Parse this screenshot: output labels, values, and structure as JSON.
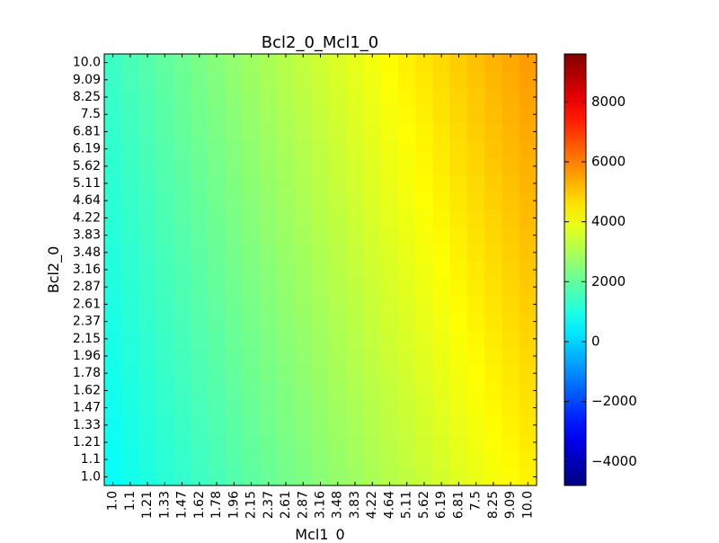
{
  "chart_data": {
    "type": "heatmap",
    "title": "Bcl2_0_Mcl1_0",
    "xlabel": "Mcl1_0",
    "ylabel": "Bcl2_0",
    "x_tick_labels": [
      "1.0",
      "1.1",
      "1.21",
      "1.33",
      "1.47",
      "1.62",
      "1.78",
      "1.96",
      "2.15",
      "2.37",
      "2.61",
      "2.87",
      "3.16",
      "3.48",
      "3.83",
      "4.22",
      "4.64",
      "5.11",
      "5.62",
      "6.19",
      "6.81",
      "7.5",
      "8.25",
      "9.09",
      "10.0"
    ],
    "y_tick_labels": [
      "1.0",
      "1.1",
      "1.21",
      "1.33",
      "1.47",
      "1.62",
      "1.78",
      "1.96",
      "2.15",
      "2.37",
      "2.61",
      "2.87",
      "3.16",
      "3.48",
      "3.83",
      "4.22",
      "4.64",
      "5.11",
      "5.62",
      "6.19",
      "6.81",
      "7.5",
      "8.25",
      "9.09",
      "10.0"
    ],
    "colorbar": {
      "colormap": "jet",
      "range": [
        -4800,
        9600
      ],
      "ticks": [
        -4000,
        -2000,
        0,
        2000,
        4000,
        6000,
        8000
      ],
      "tick_labels": [
        "−4000",
        "−2000",
        "0",
        "2000",
        "4000",
        "6000",
        "8000"
      ]
    },
    "value_model": {
      "min_value": 700,
      "max_value": 5600,
      "description": "value increases from bottom-left (≈700) to top-right (≈5600)"
    },
    "grid": false,
    "legend": "colorbar-right"
  }
}
